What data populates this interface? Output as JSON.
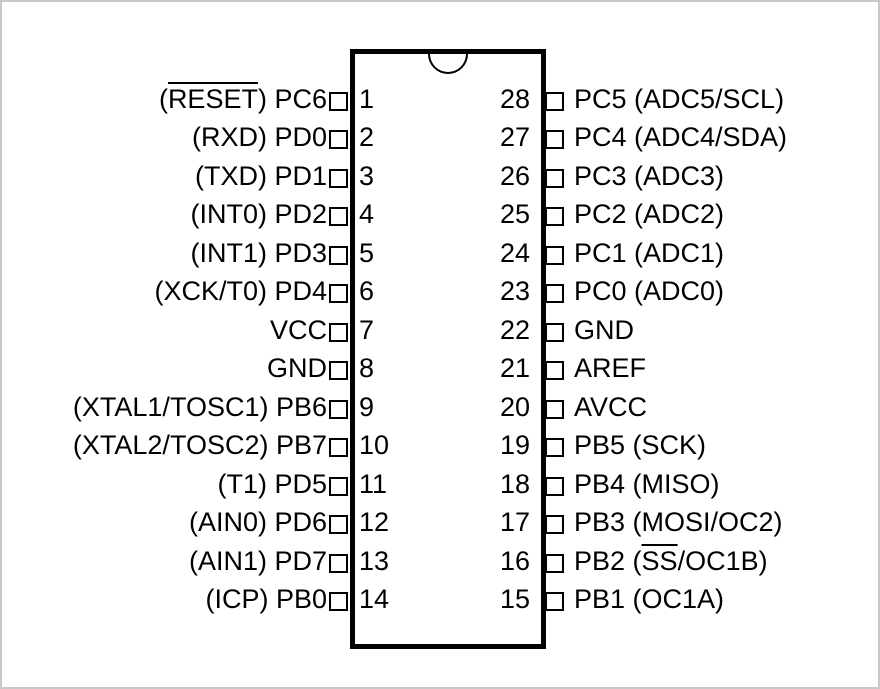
{
  "diagram": {
    "kind": "28-pin DIP IC pinout",
    "background_color": "#ffffff",
    "line_color": "#000000",
    "frame_color": "#c8c8c8"
  },
  "pins": {
    "left": [
      {
        "num": "1",
        "pre": "(",
        "over": "RESET",
        "post": ") PC6"
      },
      {
        "num": "2",
        "pre": "(RXD) PD0",
        "over": "",
        "post": ""
      },
      {
        "num": "3",
        "pre": "(TXD) PD1",
        "over": "",
        "post": ""
      },
      {
        "num": "4",
        "pre": "(INT0) PD2",
        "over": "",
        "post": ""
      },
      {
        "num": "5",
        "pre": "(INT1) PD3",
        "over": "",
        "post": ""
      },
      {
        "num": "6",
        "pre": "(XCK/T0) PD4",
        "over": "",
        "post": ""
      },
      {
        "num": "7",
        "pre": "VCC",
        "over": "",
        "post": ""
      },
      {
        "num": "8",
        "pre": "GND",
        "over": "",
        "post": ""
      },
      {
        "num": "9",
        "pre": "(XTAL1/TOSC1) PB6",
        "over": "",
        "post": ""
      },
      {
        "num": "10",
        "pre": "(XTAL2/TOSC2) PB7",
        "over": "",
        "post": ""
      },
      {
        "num": "11",
        "pre": "(T1) PD5",
        "over": "",
        "post": ""
      },
      {
        "num": "12",
        "pre": "(AIN0) PD6",
        "over": "",
        "post": ""
      },
      {
        "num": "13",
        "pre": "(AIN1) PD7",
        "over": "",
        "post": ""
      },
      {
        "num": "14",
        "pre": "(ICP) PB0",
        "over": "",
        "post": ""
      }
    ],
    "right": [
      {
        "num": "28",
        "pre": "PC5 (ADC5/SCL)",
        "over": "",
        "post": ""
      },
      {
        "num": "27",
        "pre": "PC4 (ADC4/SDA)",
        "over": "",
        "post": ""
      },
      {
        "num": "26",
        "pre": "PC3 (ADC3)",
        "over": "",
        "post": ""
      },
      {
        "num": "25",
        "pre": "PC2 (ADC2)",
        "over": "",
        "post": ""
      },
      {
        "num": "24",
        "pre": "PC1 (ADC1)",
        "over": "",
        "post": ""
      },
      {
        "num": "23",
        "pre": "PC0 (ADC0)",
        "over": "",
        "post": ""
      },
      {
        "num": "22",
        "pre": "GND",
        "over": "",
        "post": ""
      },
      {
        "num": "21",
        "pre": "AREF",
        "over": "",
        "post": ""
      },
      {
        "num": "20",
        "pre": "AVCC",
        "over": "",
        "post": ""
      },
      {
        "num": "19",
        "pre": "PB5 (SCK)",
        "over": "",
        "post": ""
      },
      {
        "num": "18",
        "pre": "PB4 (MISO)",
        "over": "",
        "post": ""
      },
      {
        "num": "17",
        "pre": "PB3 (MOSI/OC2)",
        "over": "",
        "post": ""
      },
      {
        "num": "16",
        "pre": "PB2 (",
        "over": "SS",
        "post": "/OC1B)"
      },
      {
        "num": "15",
        "pre": "PB1 (OC1A)",
        "over": "",
        "post": ""
      }
    ]
  }
}
